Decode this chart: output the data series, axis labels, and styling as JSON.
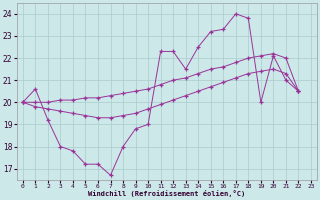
{
  "xlabel": "Windchill (Refroidissement éolien,°C)",
  "background_color": "#cce8e8",
  "grid_color": "#aacccc",
  "line_color": "#993399",
  "xlim": [
    -0.5,
    23.5
  ],
  "ylim": [
    16.5,
    24.5
  ],
  "yticks": [
    17,
    18,
    19,
    20,
    21,
    22,
    23,
    24
  ],
  "xticks": [
    0,
    1,
    2,
    3,
    4,
    5,
    6,
    7,
    8,
    9,
    10,
    11,
    12,
    13,
    14,
    15,
    16,
    17,
    18,
    19,
    20,
    21,
    22,
    23
  ],
  "s1": [
    20.0,
    20.6,
    19.2,
    18.0,
    17.8,
    17.2,
    17.2,
    16.7,
    18.0,
    18.8,
    19.0,
    22.3,
    22.3,
    21.5,
    22.5,
    23.2,
    23.3,
    24.0,
    23.8,
    20.0,
    22.1,
    21.0,
    20.5
  ],
  "s2": [
    20.0,
    20.0,
    20.0,
    20.1,
    20.1,
    20.2,
    20.2,
    20.3,
    20.4,
    20.5,
    20.6,
    20.8,
    21.0,
    21.1,
    21.3,
    21.5,
    21.6,
    21.8,
    22.0,
    22.1,
    22.2,
    22.0,
    20.5
  ],
  "s3": [
    20.0,
    19.8,
    19.7,
    19.6,
    19.5,
    19.4,
    19.3,
    19.3,
    19.4,
    19.5,
    19.7,
    19.9,
    20.1,
    20.3,
    20.5,
    20.7,
    20.9,
    21.1,
    21.3,
    21.4,
    21.5,
    21.3,
    20.5
  ]
}
